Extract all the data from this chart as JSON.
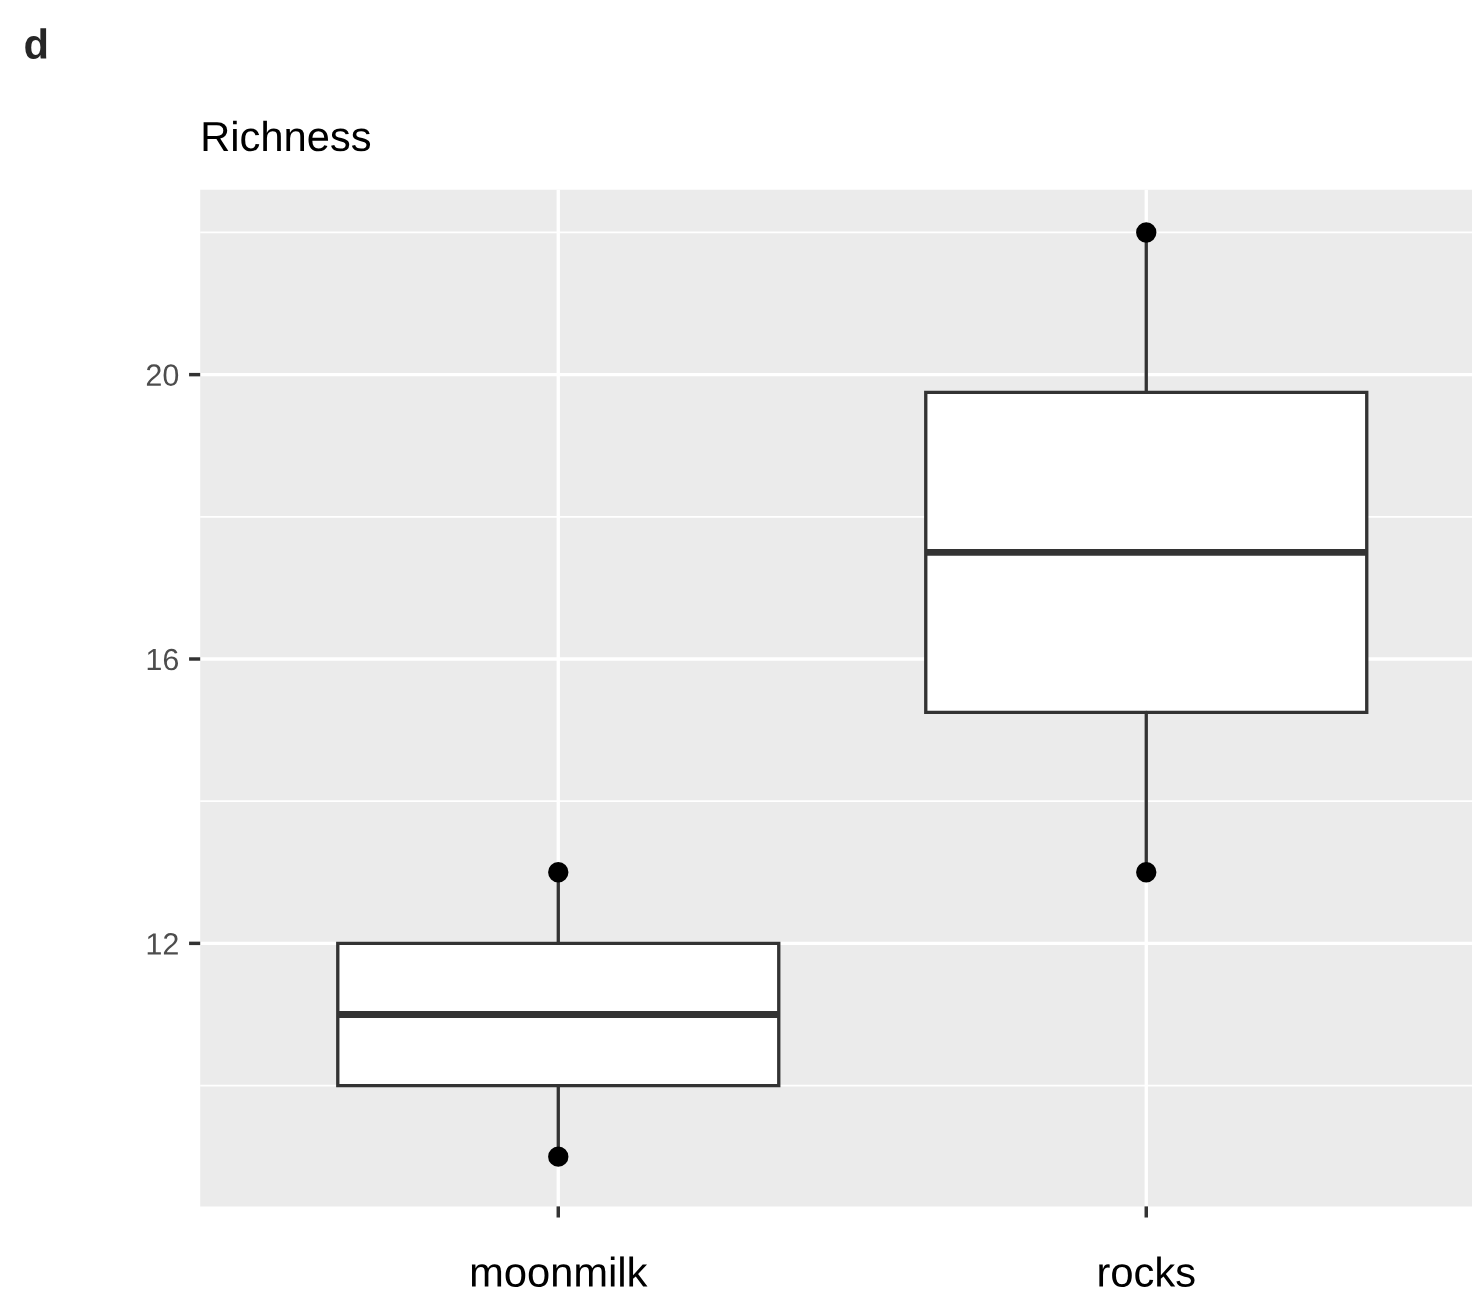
{
  "chart_data": {
    "type": "box",
    "title": "Richness",
    "annotations": [
      "d"
    ],
    "categories": [
      "moonmilk",
      "rocks"
    ],
    "boxes": [
      {
        "low": 9,
        "q1": 10,
        "median": 11,
        "q3": 12,
        "high": 13
      },
      {
        "low": 13,
        "q1": 15.25,
        "median": 17.5,
        "q3": 19.75,
        "high": 22
      }
    ],
    "series": [
      {
        "type": "scatter",
        "x": [
          "moonmilk",
          "moonmilk",
          "rocks",
          "rocks"
        ],
        "values": [
          13,
          9,
          22,
          13
        ],
        "color": "#000000",
        "marker": "circle"
      }
    ],
    "ylim": [
      8.3,
      22.6
    ],
    "yticks": [
      12,
      16,
      20
    ],
    "grid": true
  }
}
